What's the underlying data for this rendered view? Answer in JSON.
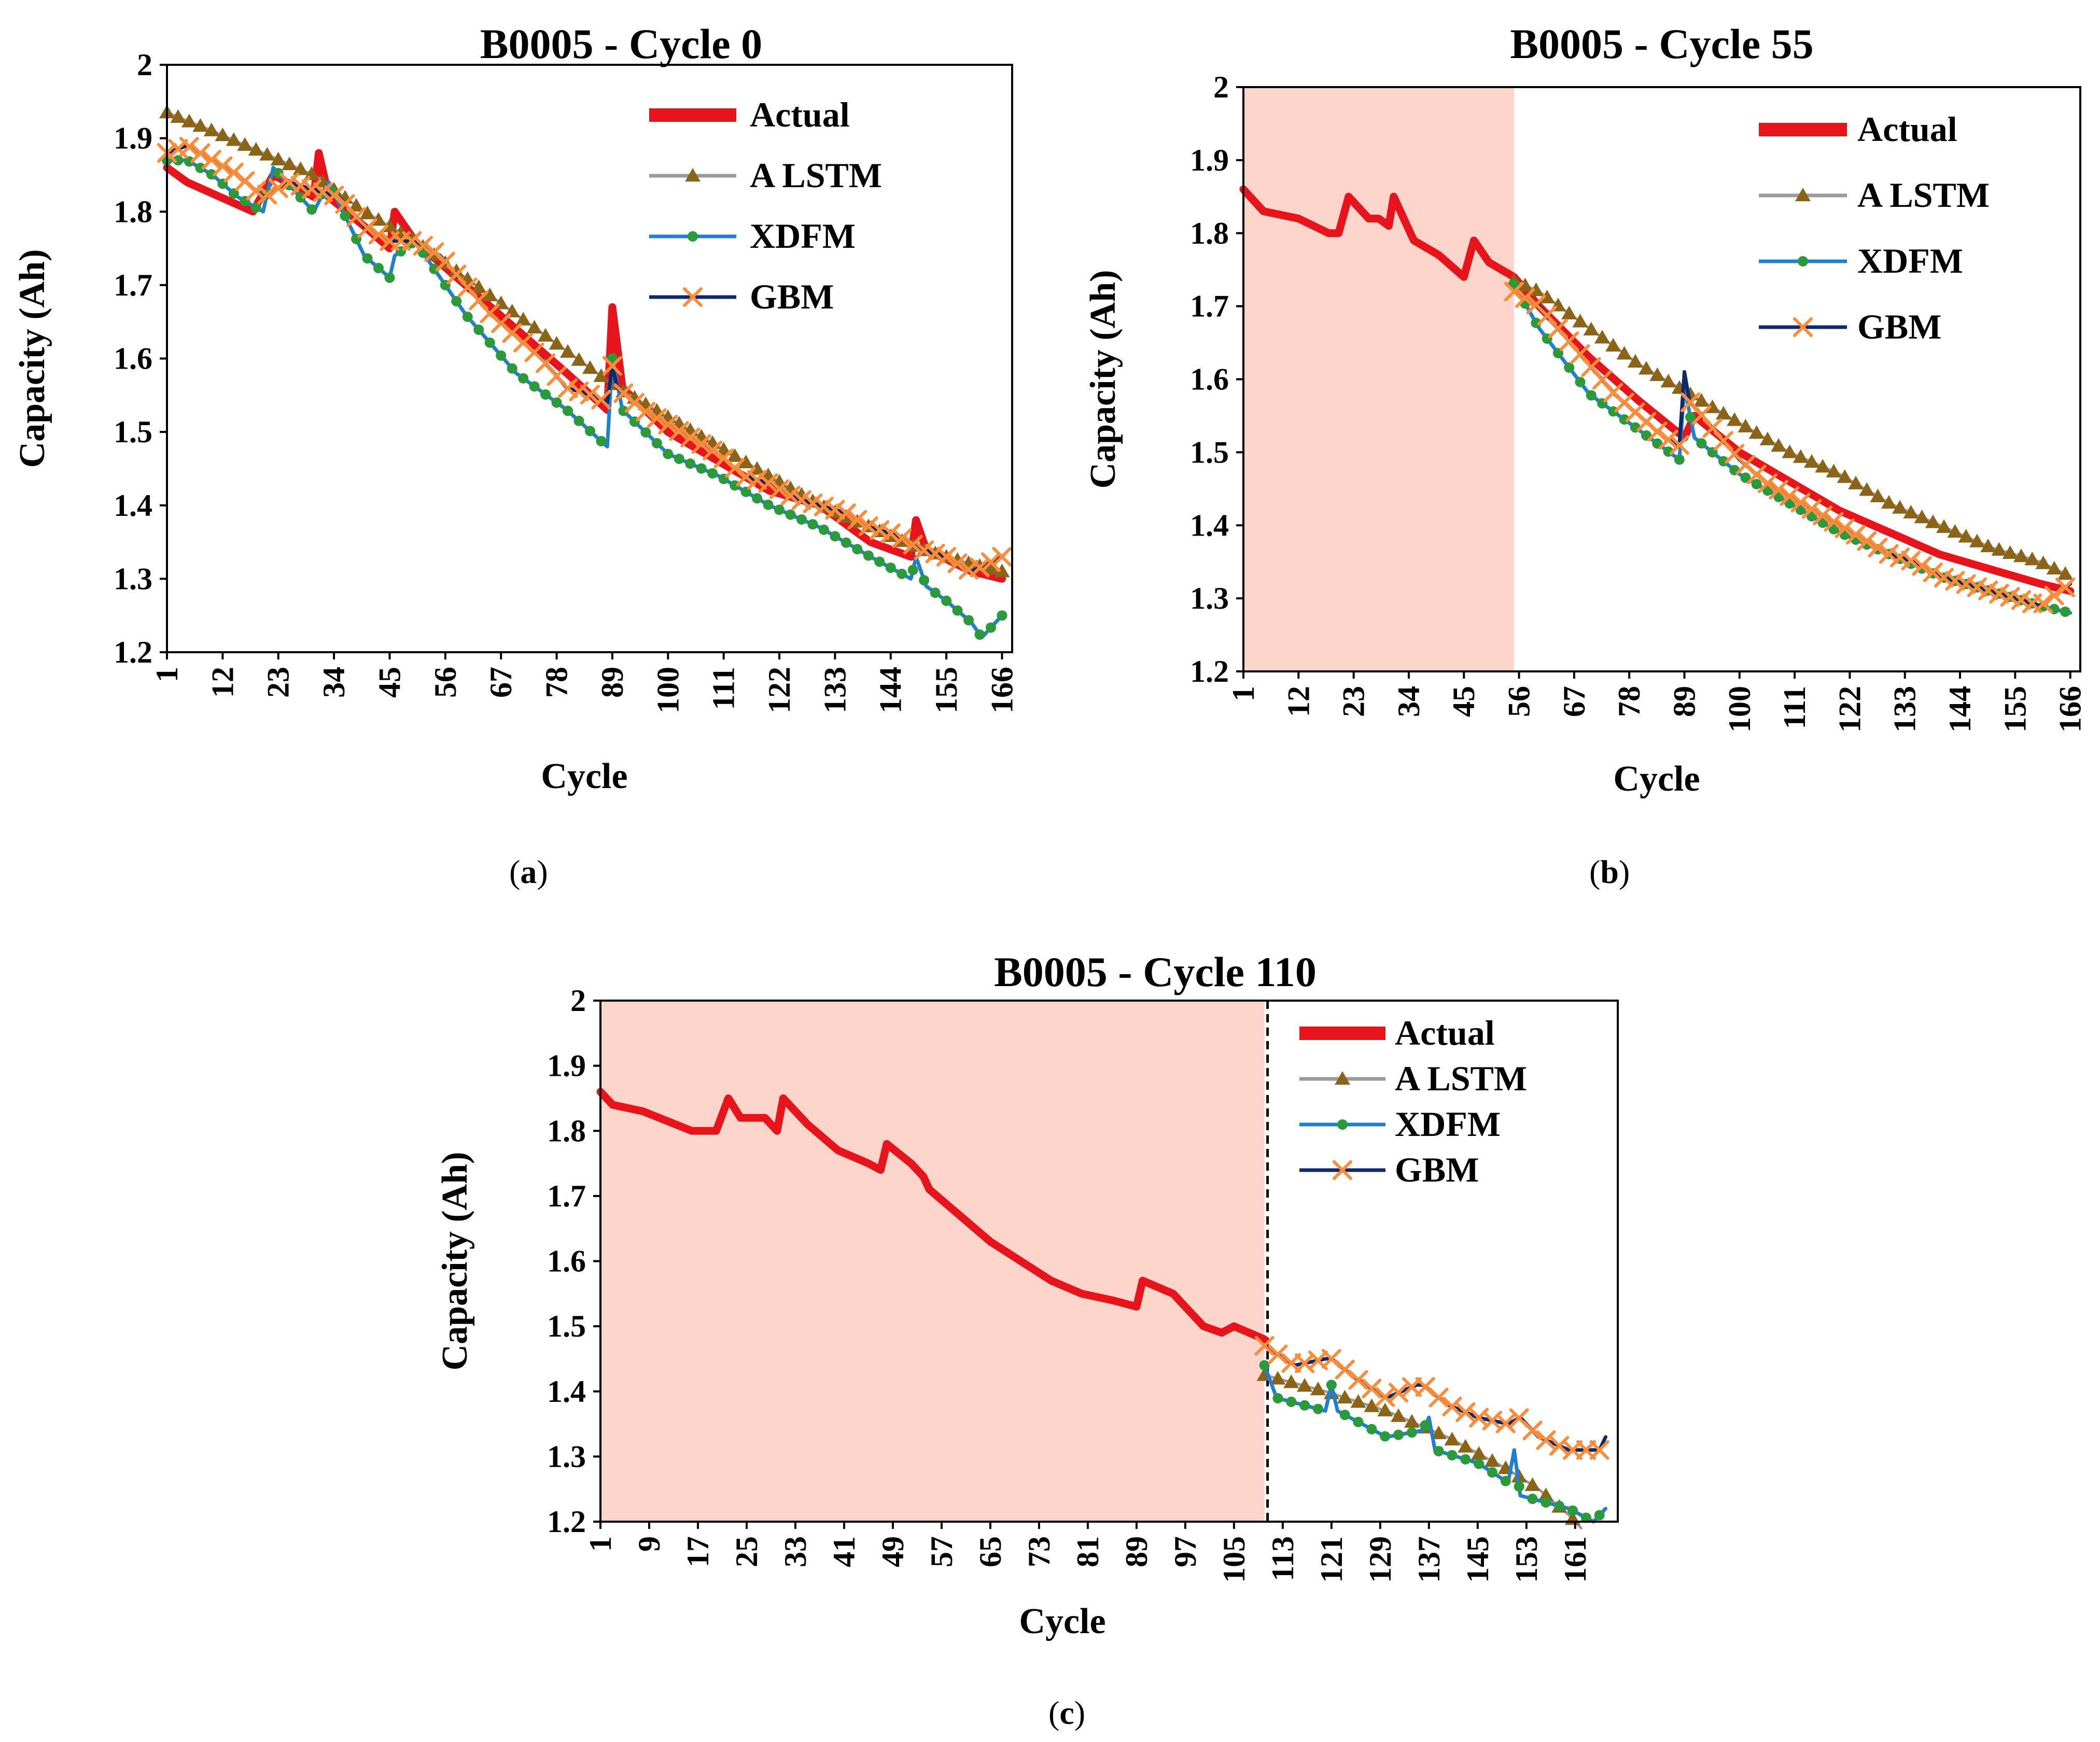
{
  "figure": {
    "panel_captions": [
      "(a)",
      "(b)",
      "(c)"
    ],
    "panel_letters": [
      "a",
      "b",
      "c"
    ]
  },
  "colors": {
    "actual": "#e8141b",
    "a_lstm": "#8c6418",
    "a_lstm_line": "#9a9a9a",
    "xdfm": "#2a9a3a",
    "xdfm_line": "#1f7fd1",
    "gbm": "#ff8c3a",
    "gbm_line": "#0f2a6b",
    "train_shade": "#fdd5cb"
  },
  "chart_data": [
    {
      "type": "line",
      "title": "B0005 - Cycle 0",
      "xlabel": "Cycle",
      "ylabel": "Capacity (Ah)",
      "ylim": [
        1.2,
        2.0
      ],
      "yticks": [
        "2",
        "1.9",
        "1.8",
        "1.7",
        "1.6",
        "1.5",
        "1.4",
        "1.3",
        "1.2"
      ],
      "xlim": [
        1,
        168
      ],
      "xticks": [
        "1",
        "12",
        "23",
        "34",
        "45",
        "56",
        "67",
        "78",
        "89",
        "100",
        "111",
        "122",
        "133",
        "144",
        "155",
        "166"
      ],
      "prediction_start_cycle": 1,
      "shaded_training_region": false,
      "legend": [
        "Actual",
        "A LSTM",
        "XDFM",
        "GBM"
      ],
      "series": [
        {
          "name": "Actual",
          "x": [
            1,
            5,
            18,
            22,
            30,
            31,
            33,
            40,
            45,
            46,
            50,
            60,
            70,
            80,
            88,
            89,
            91,
            100,
            110,
            120,
            130,
            140,
            148,
            149,
            151,
            160,
            166
          ],
          "values": [
            1.86,
            1.84,
            1.8,
            1.85,
            1.82,
            1.88,
            1.82,
            1.78,
            1.75,
            1.8,
            1.76,
            1.7,
            1.64,
            1.58,
            1.53,
            1.67,
            1.56,
            1.5,
            1.46,
            1.42,
            1.4,
            1.35,
            1.33,
            1.38,
            1.34,
            1.31,
            1.3
          ]
        },
        {
          "name": "A LSTM",
          "x": [
            1,
            10,
            20,
            30,
            40,
            50,
            60,
            70,
            80,
            90,
            100,
            110,
            120,
            130,
            140,
            150,
            160,
            166
          ],
          "values": [
            1.935,
            1.91,
            1.88,
            1.85,
            1.8,
            1.76,
            1.71,
            1.66,
            1.61,
            1.56,
            1.52,
            1.48,
            1.44,
            1.4,
            1.37,
            1.34,
            1.32,
            1.31
          ]
        },
        {
          "name": "XDFM",
          "x": [
            1,
            5,
            10,
            15,
            20,
            22,
            30,
            33,
            40,
            45,
            46,
            50,
            60,
            70,
            80,
            88,
            89,
            91,
            100,
            110,
            120,
            130,
            140,
            148,
            149,
            151,
            155,
            160,
            162,
            166
          ],
          "values": [
            1.87,
            1.87,
            1.85,
            1.82,
            1.8,
            1.86,
            1.8,
            1.84,
            1.74,
            1.71,
            1.74,
            1.76,
            1.66,
            1.58,
            1.53,
            1.48,
            1.6,
            1.53,
            1.47,
            1.44,
            1.4,
            1.37,
            1.33,
            1.3,
            1.33,
            1.29,
            1.27,
            1.24,
            1.22,
            1.25
          ]
        },
        {
          "name": "GBM",
          "x": [
            1,
            5,
            10,
            15,
            20,
            25,
            30,
            35,
            40,
            45,
            50,
            55,
            60,
            65,
            70,
            75,
            80,
            85,
            88,
            89,
            90,
            95,
            100,
            105,
            110,
            115,
            120,
            125,
            130,
            135,
            140,
            145,
            150,
            155,
            160,
            166
          ],
          "values": [
            1.88,
            1.89,
            1.87,
            1.85,
            1.82,
            1.84,
            1.83,
            1.82,
            1.78,
            1.76,
            1.76,
            1.74,
            1.7,
            1.66,
            1.63,
            1.6,
            1.56,
            1.55,
            1.54,
            1.59,
            1.56,
            1.53,
            1.51,
            1.49,
            1.47,
            1.44,
            1.43,
            1.41,
            1.4,
            1.39,
            1.37,
            1.36,
            1.34,
            1.33,
            1.31,
            1.33
          ]
        }
      ]
    },
    {
      "type": "line",
      "title": "B0005 - Cycle 55",
      "xlabel": "Cycle",
      "ylabel": "Capacity (Ah)",
      "ylim": [
        1.2,
        2.0
      ],
      "yticks": [
        "2",
        "1.9",
        "1.8",
        "1.7",
        "1.6",
        "1.5",
        "1.4",
        "1.3",
        "1.2"
      ],
      "xlim": [
        1,
        168
      ],
      "xticks": [
        "1",
        "12",
        "23",
        "34",
        "45",
        "56",
        "67",
        "78",
        "89",
        "100",
        "111",
        "122",
        "133",
        "144",
        "155",
        "166"
      ],
      "prediction_start_cycle": 55,
      "shaded_training_region": true,
      "legend": [
        "Actual",
        "A LSTM",
        "XDFM",
        "GBM"
      ],
      "series": [
        {
          "name": "Actual",
          "x": [
            1,
            5,
            12,
            18,
            20,
            22,
            26,
            28,
            30,
            31,
            35,
            40,
            45,
            47,
            50,
            55,
            60,
            70,
            80,
            89,
            91,
            100,
            110,
            120,
            130,
            140,
            150,
            160,
            166
          ],
          "values": [
            1.86,
            1.83,
            1.82,
            1.8,
            1.8,
            1.85,
            1.82,
            1.82,
            1.81,
            1.85,
            1.79,
            1.77,
            1.74,
            1.79,
            1.76,
            1.74,
            1.7,
            1.63,
            1.57,
            1.52,
            1.55,
            1.5,
            1.46,
            1.42,
            1.39,
            1.36,
            1.34,
            1.32,
            1.31
          ]
        },
        {
          "name": "A LSTM",
          "x": [
            55,
            60,
            70,
            80,
            90,
            100,
            110,
            120,
            130,
            140,
            150,
            160,
            166
          ],
          "values": [
            1.735,
            1.72,
            1.67,
            1.62,
            1.58,
            1.54,
            1.5,
            1.47,
            1.43,
            1.4,
            1.37,
            1.35,
            1.33
          ]
        },
        {
          "name": "XDFM",
          "x": [
            55,
            60,
            70,
            80,
            88,
            89,
            91,
            100,
            110,
            120,
            130,
            140,
            150,
            160,
            166
          ],
          "values": [
            1.73,
            1.67,
            1.58,
            1.53,
            1.49,
            1.59,
            1.52,
            1.47,
            1.43,
            1.39,
            1.36,
            1.33,
            1.31,
            1.29,
            1.28
          ]
        },
        {
          "name": "GBM",
          "x": [
            55,
            60,
            65,
            70,
            75,
            80,
            85,
            88,
            89,
            90,
            95,
            100,
            105,
            110,
            115,
            120,
            125,
            130,
            135,
            140,
            145,
            150,
            155,
            160,
            166
          ],
          "values": [
            1.72,
            1.7,
            1.66,
            1.62,
            1.58,
            1.55,
            1.52,
            1.51,
            1.61,
            1.57,
            1.53,
            1.49,
            1.46,
            1.44,
            1.42,
            1.4,
            1.38,
            1.36,
            1.35,
            1.33,
            1.32,
            1.31,
            1.3,
            1.29,
            1.32
          ]
        }
      ]
    },
    {
      "type": "line",
      "title": "B0005 - Cycle 110",
      "xlabel": "Cycle",
      "ylabel": "Capacity (Ah)",
      "ylim": [
        1.2,
        2.0
      ],
      "yticks": [
        "2",
        "1.9",
        "1.8",
        "1.7",
        "1.6",
        "1.5",
        "1.4",
        "1.3",
        "1.2"
      ],
      "xlim": [
        1,
        168
      ],
      "xticks": [
        "1",
        "9",
        "17",
        "25",
        "33",
        "41",
        "49",
        "57",
        "65",
        "73",
        "81",
        "89",
        "97",
        "105",
        "113",
        "121",
        "129",
        "137",
        "145",
        "153",
        "161"
      ],
      "prediction_start_cycle": 110,
      "shaded_training_region": true,
      "legend": [
        "Actual",
        "A LSTM",
        "XDFM",
        "GBM"
      ],
      "series": [
        {
          "name": "Actual",
          "x": [
            1,
            3,
            8,
            16,
            20,
            22,
            24,
            28,
            30,
            31,
            35,
            40,
            45,
            47,
            48,
            52,
            54,
            55,
            60,
            65,
            70,
            75,
            80,
            85,
            89,
            90,
            95,
            100,
            103,
            105,
            110
          ],
          "values": [
            1.86,
            1.84,
            1.83,
            1.8,
            1.8,
            1.85,
            1.82,
            1.82,
            1.8,
            1.85,
            1.81,
            1.77,
            1.75,
            1.74,
            1.78,
            1.75,
            1.73,
            1.71,
            1.67,
            1.63,
            1.6,
            1.57,
            1.55,
            1.54,
            1.53,
            1.57,
            1.55,
            1.5,
            1.49,
            1.5,
            1.48
          ]
        },
        {
          "name": "A LSTM",
          "x": [
            110,
            120,
            130,
            140,
            150,
            155,
            160,
            162
          ],
          "values": [
            1.425,
            1.4,
            1.37,
            1.33,
            1.28,
            1.25,
            1.21,
            1.19
          ]
        },
        {
          "name": "XDFM",
          "x": [
            110,
            112,
            120,
            121,
            122,
            130,
            136,
            137,
            138,
            145,
            150,
            151,
            152,
            160,
            164,
            166
          ],
          "values": [
            1.44,
            1.39,
            1.37,
            1.41,
            1.37,
            1.33,
            1.34,
            1.36,
            1.31,
            1.29,
            1.26,
            1.31,
            1.24,
            1.22,
            1.2,
            1.22
          ]
        },
        {
          "name": "GBM",
          "x": [
            110,
            115,
            120,
            121,
            125,
            130,
            135,
            136,
            140,
            145,
            150,
            152,
            155,
            160,
            165,
            166
          ],
          "values": [
            1.47,
            1.44,
            1.45,
            1.45,
            1.42,
            1.39,
            1.41,
            1.41,
            1.38,
            1.36,
            1.35,
            1.36,
            1.33,
            1.31,
            1.31,
            1.33
          ]
        }
      ]
    }
  ]
}
